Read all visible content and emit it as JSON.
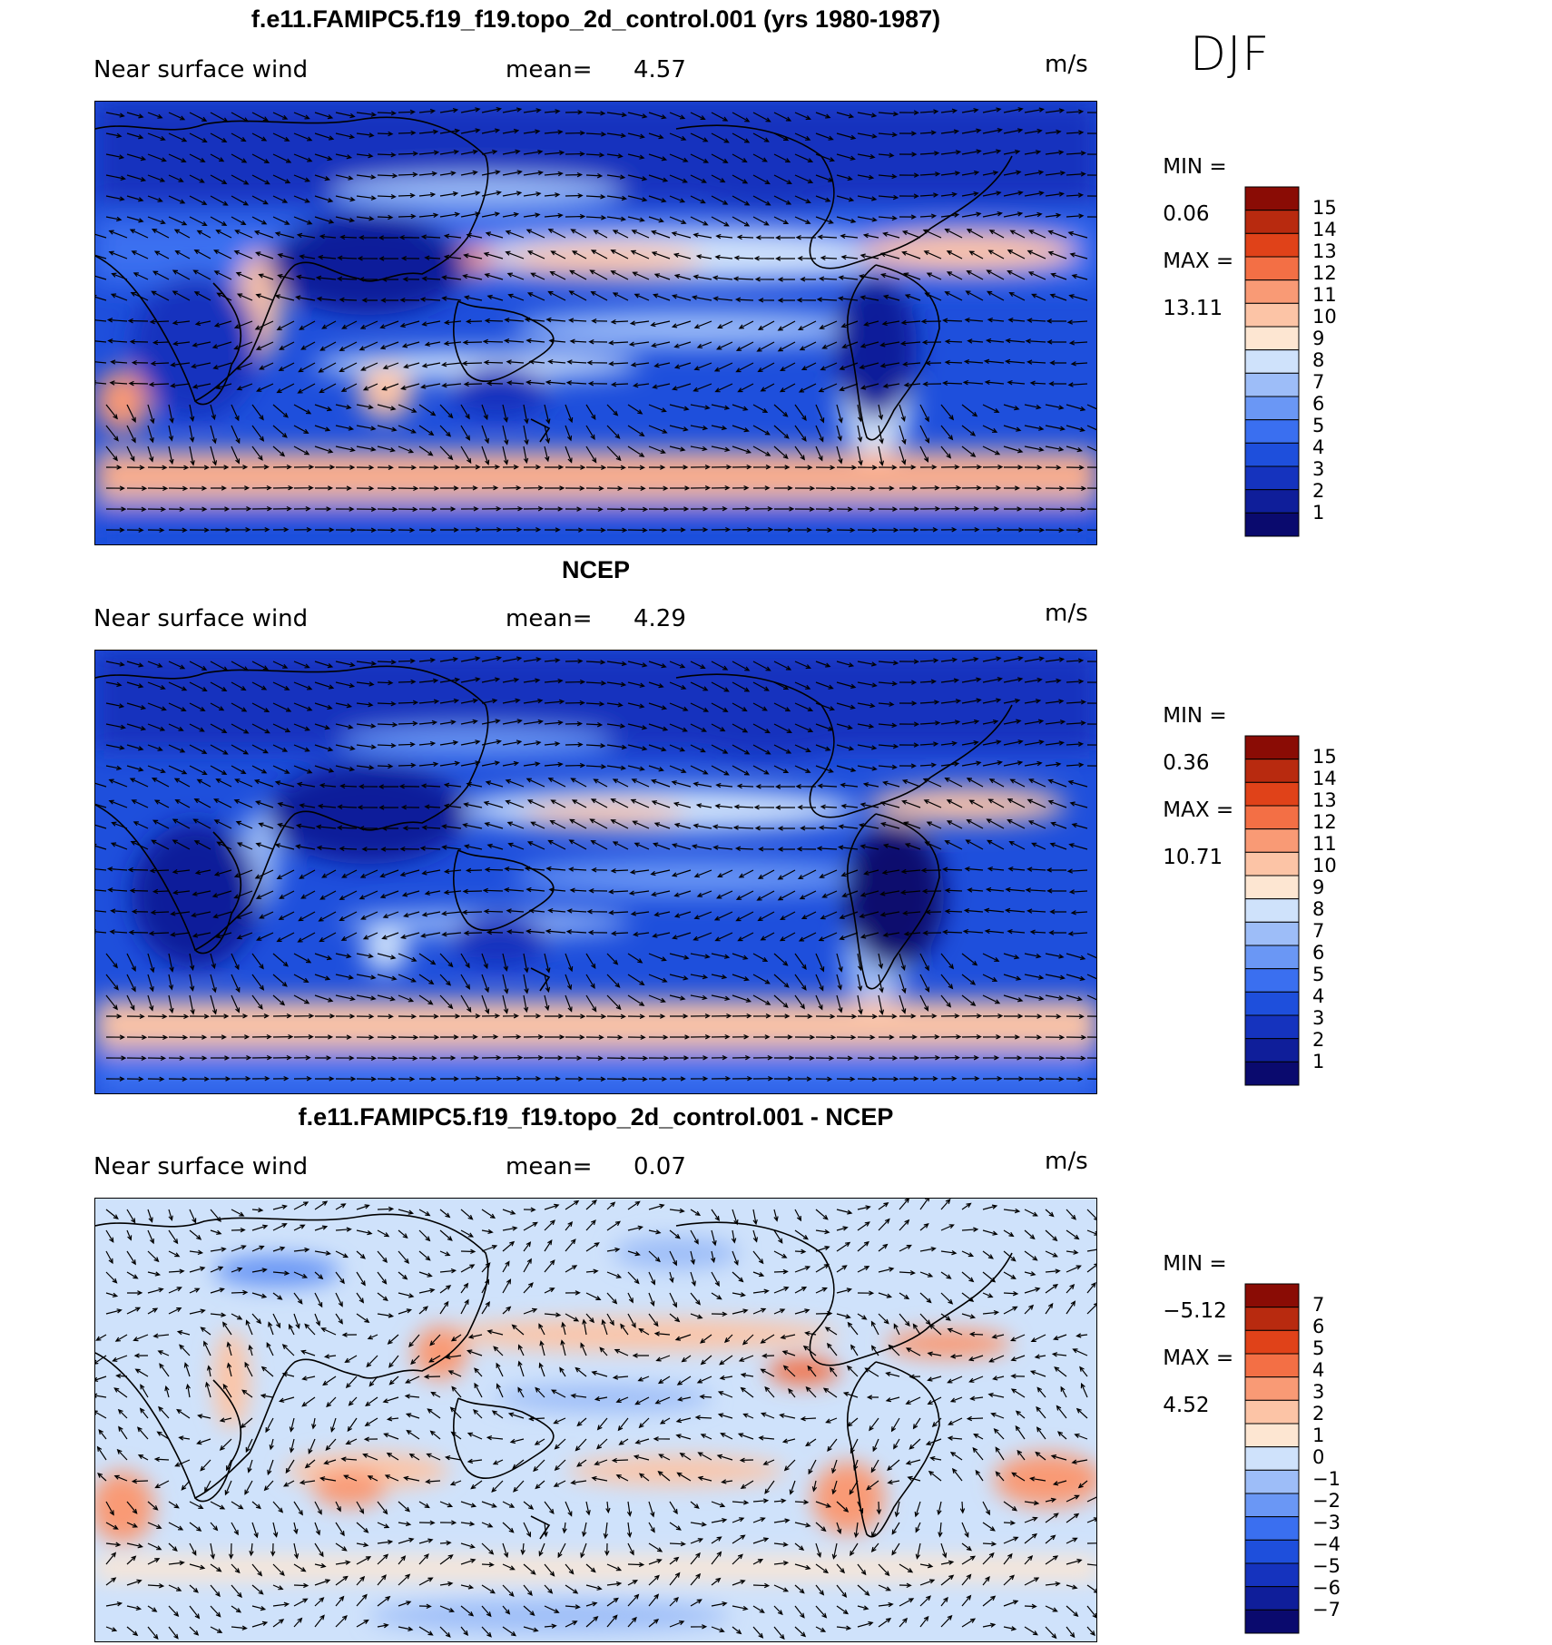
{
  "season": "DJF",
  "colors": {
    "abs_scale": [
      "#0a0a6e",
      "#0f1e9a",
      "#1533be",
      "#1e4fdc",
      "#3a6ff0",
      "#6a97f5",
      "#9dbdf8",
      "#cfe2fb",
      "#fde6d2",
      "#fcc4a6",
      "#f99a75",
      "#f36f45",
      "#e04219",
      "#b82a0f",
      "#8a0c05"
    ],
    "diff_scale": [
      "#0a0a6e",
      "#0f1e9a",
      "#1533be",
      "#1e4fdc",
      "#3a6ff0",
      "#6a97f5",
      "#9dbdf8",
      "#cfe2fb",
      "#fde6d2",
      "#fcc4a6",
      "#f99a75",
      "#f36f45",
      "#e04219",
      "#b82a0f",
      "#8a0c05"
    ],
    "land_outline": "#000000",
    "vector": "#000000"
  },
  "panels": [
    {
      "title": "f.e11.FAMIPC5.f19_f19.topo_2d_control.001 (yrs 1980-1987)",
      "variable": "Near surface wind",
      "mean_label": "mean=",
      "mean_value": "4.57",
      "units": "m/s",
      "min_label": "MIN =",
      "min_value": "0.06",
      "max_label": "MAX =",
      "max_value": "13.11",
      "colorbar_labels": [
        "15",
        "14",
        "13",
        "12",
        "11",
        "10",
        "9",
        "8",
        "7",
        "6",
        "5",
        "4",
        "3",
        "2",
        "1"
      ]
    },
    {
      "title": "NCEP",
      "variable": "Near surface wind",
      "mean_label": "mean=",
      "mean_value": "4.29",
      "units": "m/s",
      "min_label": "MIN =",
      "min_value": "0.36",
      "max_label": "MAX =",
      "max_value": "10.71",
      "colorbar_labels": [
        "15",
        "14",
        "13",
        "12",
        "11",
        "10",
        "9",
        "8",
        "7",
        "6",
        "5",
        "4",
        "3",
        "2",
        "1"
      ]
    },
    {
      "title": "f.e11.FAMIPC5.f19_f19.topo_2d_control.001 - NCEP",
      "variable": "Near surface wind",
      "mean_label": "mean=",
      "mean_value": "0.07",
      "units": "m/s",
      "min_label": "MIN =",
      "min_value": "−5.12",
      "max_label": "MAX =",
      "max_value": "4.52",
      "colorbar_labels": [
        "7",
        "6",
        "5",
        "4",
        "3",
        "2",
        "1",
        "0",
        "−1",
        "−2",
        "−3",
        "−4",
        "−5",
        "−6",
        "−7"
      ]
    }
  ]
}
